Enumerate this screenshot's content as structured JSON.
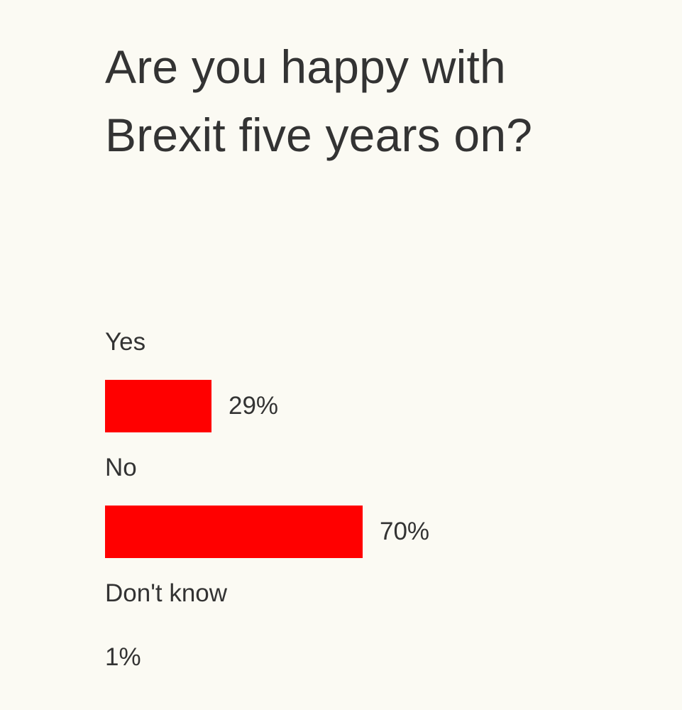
{
  "colors": {
    "background": "#fbfaf3",
    "text": "#333333",
    "bar": "#ff0000"
  },
  "chart_data": {
    "type": "bar",
    "orientation": "horizontal",
    "title": "Are you happy with Brexit five years on?",
    "categories": [
      "Yes",
      "No",
      "Don't know"
    ],
    "values": [
      29,
      70,
      1
    ],
    "value_labels": [
      "29%",
      "70%",
      "1%"
    ],
    "unit": "%",
    "xlim": [
      0,
      100
    ],
    "grid": false,
    "legend": "none"
  }
}
